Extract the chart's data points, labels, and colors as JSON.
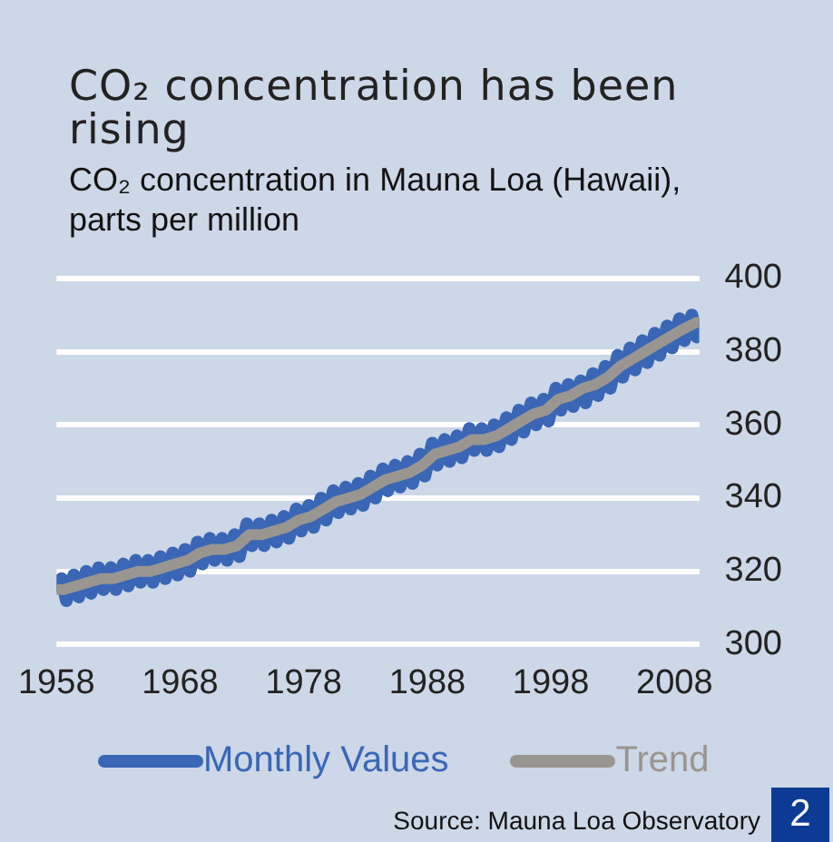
{
  "chart_data": {
    "type": "line",
    "title": "CO₂ concentration has been rising",
    "subtitle": "CO₂ concentration in Mauna Loa (Hawaii), parts per million",
    "annotations": [
      "Source: Mauna Loa Observatory",
      "2"
    ],
    "xlim": [
      1958,
      2010
    ],
    "xticks": [
      1958,
      1968,
      1978,
      1988,
      1998,
      2008
    ],
    "ylim": [
      300,
      400
    ],
    "yticks": [
      300,
      320,
      340,
      360,
      380,
      400
    ],
    "grid": "y",
    "legend": "bottom",
    "series": [
      {
        "name": "Monthly Values",
        "color": "#3a66b5",
        "x": [
          1958.2,
          1958.4,
          1958.8,
          1959.4,
          1959.8,
          1960.4,
          1960.8,
          1961.4,
          1961.8,
          1962.4,
          1962.8,
          1963.4,
          1963.8,
          1964.4,
          1964.8,
          1965.4,
          1965.8,
          1966.4,
          1966.8,
          1967.4,
          1967.8,
          1968.4,
          1968.8,
          1969.4,
          1969.8,
          1970.4,
          1970.8,
          1971.4,
          1971.8,
          1972.4,
          1972.8,
          1973.4,
          1973.8,
          1974.4,
          1974.8,
          1975.4,
          1975.8,
          1976.4,
          1976.8,
          1977.4,
          1977.8,
          1978.4,
          1978.8,
          1979.4,
          1979.8,
          1980.4,
          1980.8,
          1981.4,
          1981.8,
          1982.4,
          1982.8,
          1983.4,
          1983.8,
          1984.4,
          1984.8,
          1985.4,
          1985.8,
          1986.4,
          1986.8,
          1987.4,
          1987.8,
          1988.4,
          1988.8,
          1989.4,
          1989.8,
          1990.4,
          1990.8,
          1991.4,
          1991.8,
          1992.4,
          1992.8,
          1993.4,
          1993.8,
          1994.4,
          1994.8,
          1995.4,
          1995.8,
          1996.4,
          1996.8,
          1997.4,
          1997.8,
          1998.4,
          1998.8,
          1999.4,
          1999.8,
          2000.4,
          2000.8,
          2001.4,
          2001.8,
          2002.4,
          2002.8,
          2003.4,
          2003.8,
          2004.4,
          2004.8,
          2005.4,
          2005.8,
          2006.4,
          2006.8,
          2007.4,
          2007.8,
          2008.4,
          2008.8,
          2009.4,
          2009.8
        ],
        "values": [
          316,
          318,
          312,
          319,
          313,
          320,
          314,
          321,
          315,
          321,
          315,
          322,
          316,
          323,
          317,
          323,
          317,
          324,
          318,
          325,
          319,
          326,
          320,
          328,
          322,
          329,
          323,
          329,
          323,
          330,
          324,
          333,
          327,
          333,
          327,
          334,
          328,
          335,
          329,
          337,
          331,
          338,
          332,
          340,
          334,
          342,
          336,
          343,
          337,
          344,
          338,
          346,
          340,
          348,
          342,
          349,
          343,
          350,
          344,
          352,
          346,
          355,
          349,
          356,
          350,
          357,
          351,
          359,
          353,
          359,
          353,
          360,
          354,
          362,
          356,
          364,
          358,
          366,
          360,
          367,
          361,
          370,
          364,
          371,
          365,
          372,
          366,
          374,
          368,
          376,
          370,
          379,
          373,
          381,
          375,
          383,
          377,
          385,
          379,
          387,
          381,
          389,
          383,
          390,
          384
        ]
      },
      {
        "name": "Trend",
        "color": "#999591",
        "x": [
          1958.2,
          1958.6,
          1959.6,
          1960.6,
          1961.6,
          1962.6,
          1963.6,
          1964.6,
          1965.6,
          1966.6,
          1967.6,
          1968.6,
          1969.6,
          1970.6,
          1971.6,
          1972.6,
          1973.6,
          1974.6,
          1975.6,
          1976.6,
          1977.6,
          1978.6,
          1979.6,
          1980.6,
          1981.6,
          1982.6,
          1983.6,
          1984.6,
          1985.6,
          1986.6,
          1987.6,
          1988.6,
          1989.6,
          1990.6,
          1991.6,
          1992.6,
          1993.6,
          1994.6,
          1995.6,
          1996.6,
          1997.6,
          1998.6,
          1999.6,
          2000.6,
          2001.6,
          2002.6,
          2003.6,
          2004.6,
          2005.6,
          2006.6,
          2007.6,
          2008.6,
          2009.8
        ],
        "values": [
          315,
          315,
          316,
          317,
          318,
          318,
          319,
          320,
          320,
          321,
          322,
          323,
          325,
          326,
          326,
          327,
          330,
          330,
          331,
          332,
          334,
          335,
          337,
          339,
          340,
          341,
          343,
          345,
          346,
          347,
          349,
          352,
          353,
          354,
          356,
          356,
          357,
          359,
          361,
          363,
          364,
          367,
          368,
          370,
          371,
          373,
          376,
          378,
          380,
          382,
          384,
          386,
          388
        ]
      }
    ]
  }
}
